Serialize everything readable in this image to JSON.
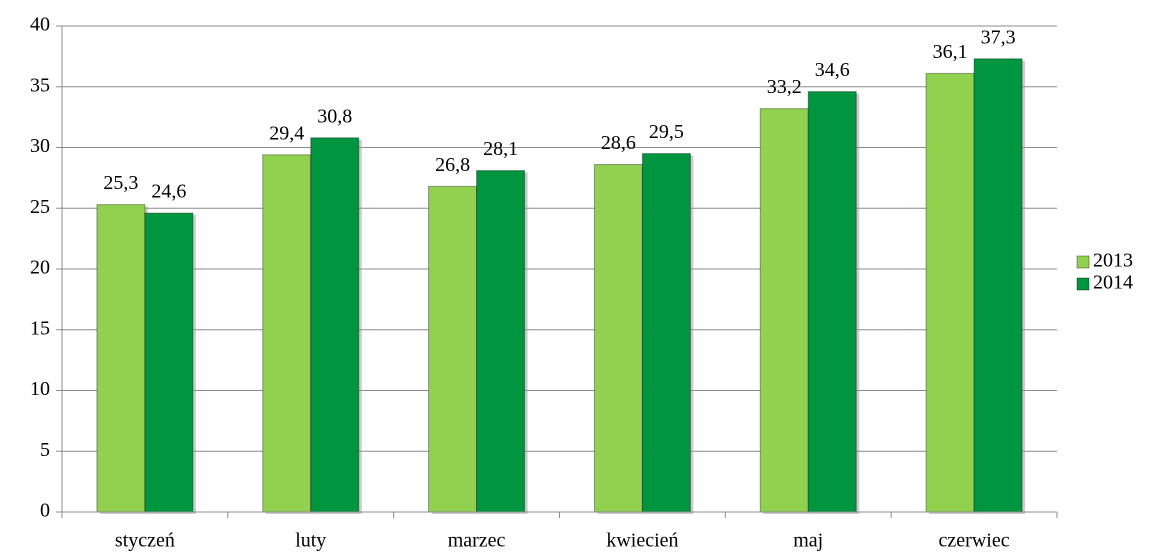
{
  "chart_data": {
    "type": "bar",
    "categories": [
      "styczeń",
      "luty",
      "marzec",
      "kwiecień",
      "maj",
      "czerwiec"
    ],
    "series": [
      {
        "name": "2013",
        "color": "#92d050",
        "values": [
          25.3,
          29.4,
          26.8,
          28.6,
          33.2,
          36.1
        ],
        "value_labels": [
          "25,3",
          "29,4",
          "26,8",
          "28,6",
          "33,2",
          "36,1"
        ]
      },
      {
        "name": "2014",
        "color": "#00953f",
        "values": [
          24.6,
          30.8,
          28.1,
          29.5,
          34.6,
          37.3
        ],
        "value_labels": [
          "24,6",
          "30,8",
          "28,1",
          "29,5",
          "34,6",
          "37,3"
        ]
      }
    ],
    "ylim": [
      0,
      40
    ],
    "yticks": [
      0,
      5,
      10,
      15,
      20,
      25,
      30,
      35,
      40
    ],
    "grid": true,
    "legend": "right"
  }
}
